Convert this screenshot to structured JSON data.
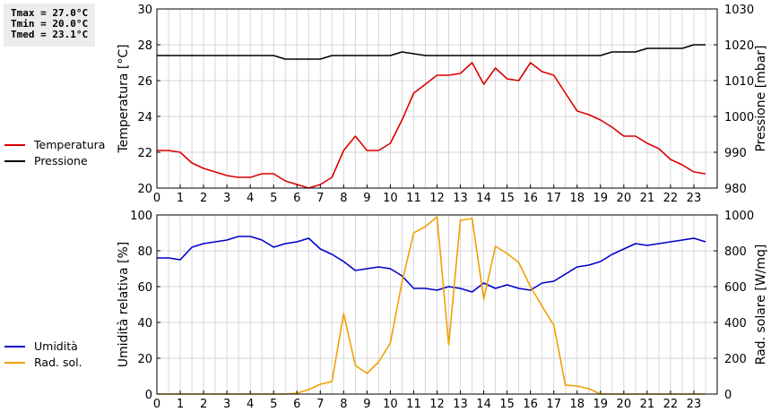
{
  "stats": {
    "tmax": "Tmax = 27.0°C",
    "tmin": "Tmin = 20.0°C",
    "tmed": "Tmed = 23.1°C"
  },
  "chart_data": [
    {
      "type": "line",
      "x_ticks": [
        "0",
        "1",
        "2",
        "3",
        "4",
        "5",
        "6",
        "7",
        "8",
        "9",
        "10",
        "11",
        "12",
        "13",
        "14",
        "15",
        "16",
        "17",
        "18",
        "19",
        "20",
        "21",
        "22",
        "23"
      ],
      "xlim": [
        0,
        24
      ],
      "ylabel_left": "Temperatura [°C]",
      "ylabel_right": "Pressione [mbar]",
      "ylim_left": [
        20,
        30
      ],
      "ylim_right": [
        980,
        1030
      ],
      "yticks_left": [
        20,
        22,
        24,
        26,
        28,
        30
      ],
      "yticks_right": [
        980,
        990,
        1000,
        1010,
        1020,
        1030
      ],
      "grid": true,
      "series": [
        {
          "name": "Temperatura",
          "axis": "left",
          "color": "#dd0000",
          "x": [
            0,
            0.5,
            1,
            1.5,
            2,
            2.5,
            3,
            3.5,
            4,
            4.5,
            5,
            5.5,
            6,
            6.5,
            7,
            7.5,
            8,
            8.5,
            9,
            9.5,
            10,
            10.5,
            11,
            11.5,
            12,
            12.5,
            13,
            13.5,
            14,
            14.5,
            15,
            15.5,
            16,
            16.5,
            17,
            17.5,
            18,
            18.5,
            19,
            19.5,
            20,
            20.5,
            21,
            21.5,
            22,
            22.5,
            23,
            23.5
          ],
          "y": [
            22.1,
            22.1,
            22.0,
            21.4,
            21.1,
            20.9,
            20.7,
            20.6,
            20.6,
            20.8,
            20.8,
            20.4,
            20.2,
            20.0,
            20.2,
            20.6,
            22.1,
            22.9,
            22.1,
            22.1,
            22.5,
            23.8,
            25.3,
            25.8,
            26.3,
            26.3,
            26.4,
            27.0,
            25.8,
            26.7,
            26.1,
            26.0,
            27.0,
            26.5,
            26.3,
            25.3,
            24.3,
            24.1,
            23.8,
            23.4,
            22.9,
            22.9,
            22.5,
            22.2,
            21.6,
            21.3,
            20.9,
            20.8
          ]
        },
        {
          "name": "Pressione",
          "axis": "right",
          "color": "#000000",
          "x": [
            0,
            5,
            5.5,
            7,
            7.5,
            10,
            10.5,
            11.5,
            19,
            19.5,
            20.5,
            21,
            22.5,
            23,
            23.5
          ],
          "y": [
            1017,
            1017,
            1016,
            1016,
            1017,
            1017,
            1018,
            1017,
            1017,
            1018,
            1018,
            1019,
            1019,
            1020,
            1020
          ]
        }
      ]
    },
    {
      "type": "line",
      "x_ticks": [
        "0",
        "1",
        "2",
        "3",
        "4",
        "5",
        "6",
        "7",
        "8",
        "9",
        "10",
        "11",
        "12",
        "13",
        "14",
        "15",
        "16",
        "17",
        "18",
        "19",
        "20",
        "21",
        "22",
        "23"
      ],
      "xlim": [
        0,
        24
      ],
      "ylabel_left": "Umidità relativa [%]",
      "ylabel_right": "Rad. solare [W/mq]",
      "ylim_left": [
        0,
        100
      ],
      "ylim_right": [
        0,
        1000
      ],
      "yticks_left": [
        0,
        20,
        40,
        60,
        80,
        100
      ],
      "yticks_right": [
        0,
        200,
        400,
        600,
        800,
        1000
      ],
      "grid": true,
      "series": [
        {
          "name": "Umidità",
          "axis": "left",
          "color": "#0000cc",
          "x": [
            0,
            0.5,
            1,
            1.5,
            2,
            2.5,
            3,
            3.5,
            4,
            4.5,
            5,
            5.5,
            6,
            6.5,
            7,
            7.5,
            8,
            8.5,
            9,
            9.5,
            10,
            10.5,
            11,
            11.5,
            12,
            12.5,
            13,
            13.5,
            14,
            14.5,
            15,
            15.5,
            16,
            16.5,
            17,
            17.5,
            18,
            18.5,
            19,
            19.5,
            20,
            20.5,
            21,
            21.5,
            22,
            22.5,
            23,
            23.5
          ],
          "y": [
            76,
            76,
            75,
            82,
            84,
            85,
            86,
            88,
            88,
            86,
            82,
            84,
            85,
            87,
            81,
            78,
            74,
            69,
            70,
            71,
            70,
            66,
            59,
            59,
            58,
            60,
            59,
            57,
            62,
            59,
            61,
            59,
            58,
            62,
            63,
            67,
            71,
            72,
            74,
            78,
            81,
            84,
            83,
            84,
            85,
            86,
            87,
            85
          ]
        },
        {
          "name": "Rad. sol.",
          "axis": "right",
          "color": "#f0a000",
          "x": [
            0,
            0.5,
            1,
            1.5,
            2,
            2.5,
            3,
            3.5,
            4,
            4.5,
            5,
            5.5,
            6,
            6.5,
            7,
            7.5,
            8,
            8.5,
            9,
            9.5,
            10,
            10.5,
            11,
            11.5,
            12,
            12.5,
            13,
            13.5,
            14,
            14.5,
            15,
            15.5,
            16,
            16.5,
            17,
            17.5,
            18,
            18.5,
            19,
            19.5,
            20,
            20.5,
            21,
            21.5,
            22,
            22.5,
            23,
            23.5
          ],
          "y": [
            0,
            0,
            0,
            0,
            0,
            0,
            0,
            0,
            0,
            0,
            0,
            0,
            5,
            25,
            55,
            70,
            450,
            160,
            115,
            180,
            285,
            625,
            900,
            935,
            990,
            275,
            970,
            980,
            530,
            825,
            785,
            735,
            600,
            490,
            385,
            50,
            45,
            30,
            0,
            0,
            0,
            0,
            0,
            0,
            0,
            0,
            0,
            0
          ]
        }
      ]
    }
  ]
}
